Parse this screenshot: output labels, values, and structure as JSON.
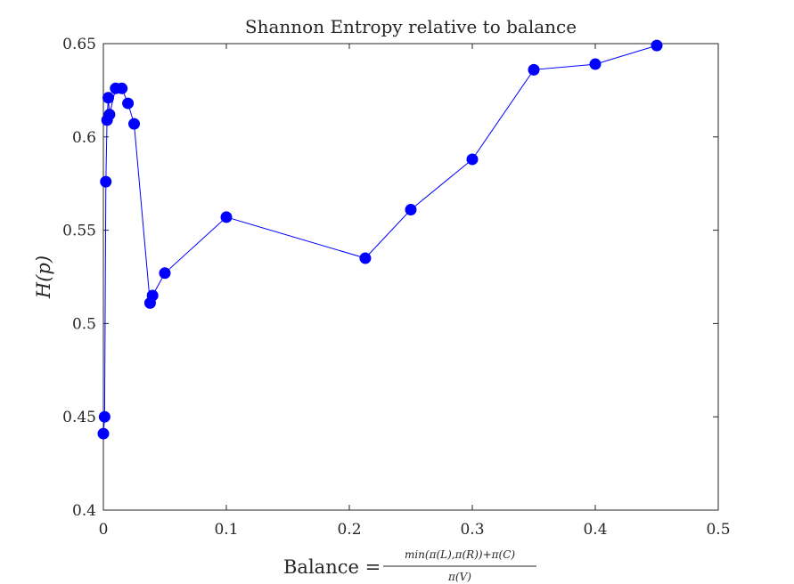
{
  "chart_data": {
    "type": "line",
    "title": "Shannon Entropy relative to balance",
    "xlabel": {
      "prefix": "Balance =",
      "numerator": "min(π(L),π(R))+π(C)",
      "denominator": "π(V)"
    },
    "ylabel": "H(p)",
    "xlim": [
      0,
      0.5
    ],
    "ylim": [
      0.4,
      0.65
    ],
    "xticks": [
      "0",
      "0.1",
      "0.2",
      "0.3",
      "0.4",
      "0.5"
    ],
    "yticks": [
      "0.4",
      "0.45",
      "0.5",
      "0.55",
      "0.6",
      "0.65"
    ],
    "grid": false,
    "marker": "circle",
    "color": "#0000ff",
    "points": [
      [
        0.0,
        0.441
      ],
      [
        0.001,
        0.45
      ],
      [
        0.002,
        0.576
      ],
      [
        0.003,
        0.609
      ],
      [
        0.004,
        0.621
      ],
      [
        0.005,
        0.612
      ],
      [
        0.01,
        0.626
      ],
      [
        0.015,
        0.626
      ],
      [
        0.02,
        0.618
      ],
      [
        0.025,
        0.607
      ],
      [
        0.038,
        0.511
      ],
      [
        0.04,
        0.515
      ],
      [
        0.05,
        0.527
      ],
      [
        0.1,
        0.557
      ],
      [
        0.213,
        0.535
      ],
      [
        0.25,
        0.561
      ],
      [
        0.3,
        0.588
      ],
      [
        0.35,
        0.636
      ],
      [
        0.4,
        0.639
      ],
      [
        0.45,
        0.649
      ]
    ]
  }
}
